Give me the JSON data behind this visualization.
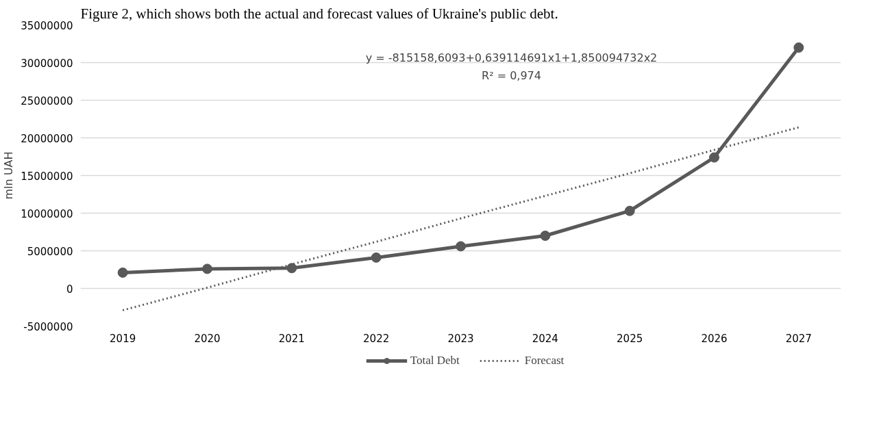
{
  "chart_data": {
    "type": "line",
    "ylabel": "mln UAH",
    "categories": [
      "2019",
      "2020",
      "2021",
      "2022",
      "2023",
      "2024",
      "2025",
      "2026",
      "2027"
    ],
    "series": [
      {
        "name": "Total Debt",
        "color": "#595959",
        "marker": "circle",
        "line_style": "solid",
        "values": [
          2100000,
          2600000,
          2700000,
          4100000,
          5600000,
          7000000,
          10300000,
          17400000,
          32000000
        ]
      },
      {
        "name": "Forecast",
        "color": "#595959",
        "marker": "none",
        "line_style": "dotted",
        "values": [
          -2900000,
          100000,
          3200000,
          6200000,
          9300000,
          12300000,
          15300000,
          18400000,
          21400000
        ]
      }
    ],
    "ylim": [
      -5000000,
      35000000
    ],
    "yticks": [
      -5000000,
      0,
      5000000,
      10000000,
      15000000,
      20000000,
      25000000,
      30000000,
      35000000
    ],
    "grid": "y",
    "legend": "bottom",
    "annotations": [
      "Figure 2, which shows both the actual and forecast values of Ukraine's public debt.",
      "y = -815158,6093+0,639114691x1+1,850094732x2",
      "R² = 0,974"
    ]
  }
}
